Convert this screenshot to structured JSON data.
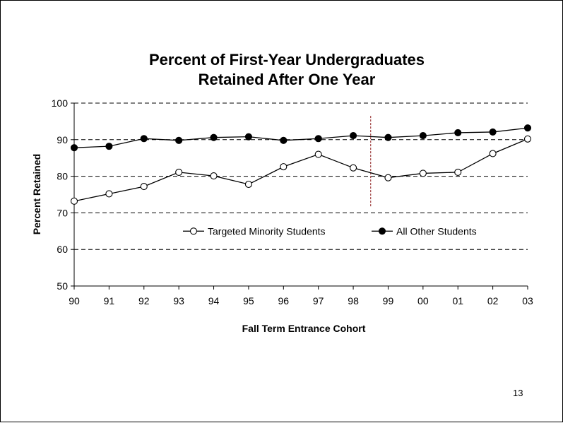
{
  "chart_data": {
    "type": "line",
    "title": [
      "Percent of First-Year Undergraduates",
      "Retained After One Year"
    ],
    "xlabel": "Fall Term Entrance Cohort",
    "ylabel": "Percent Retained",
    "categories": [
      "90",
      "91",
      "92",
      "93",
      "94",
      "95",
      "96",
      "97",
      "98",
      "99",
      "00",
      "01",
      "02",
      "03"
    ],
    "ylim": [
      50,
      100
    ],
    "yticks": [
      50,
      60,
      70,
      80,
      90,
      100
    ],
    "grid": "dashed horizontal",
    "legend_position": "inside-center",
    "series": [
      {
        "name": "Targeted Minority Students",
        "marker": "open-circle",
        "values": [
          73.2,
          75.2,
          77.2,
          81.1,
          80.1,
          77.8,
          82.6,
          86.0,
          82.3,
          79.6,
          80.8,
          81.1,
          86.2,
          90.2
        ]
      },
      {
        "name": "All Other Students",
        "marker": "filled-circle",
        "values": [
          87.8,
          88.2,
          90.3,
          89.8,
          90.6,
          90.8,
          89.8,
          90.3,
          91.1,
          90.6,
          91.1,
          91.9,
          92.1,
          93.2
        ]
      }
    ],
    "annotations": [
      {
        "type": "vertical-dashed-line",
        "x_between": [
          "98",
          "99"
        ],
        "color": "#8b1a1a",
        "y_range": [
          71.5,
          96.5
        ]
      }
    ]
  },
  "slide": {
    "page_number": "13"
  },
  "colors": {
    "line": "#000000",
    "marker_open_fill": "#ffffff",
    "marker_filled": "#000000",
    "annotation": "#8b1a1a"
  }
}
